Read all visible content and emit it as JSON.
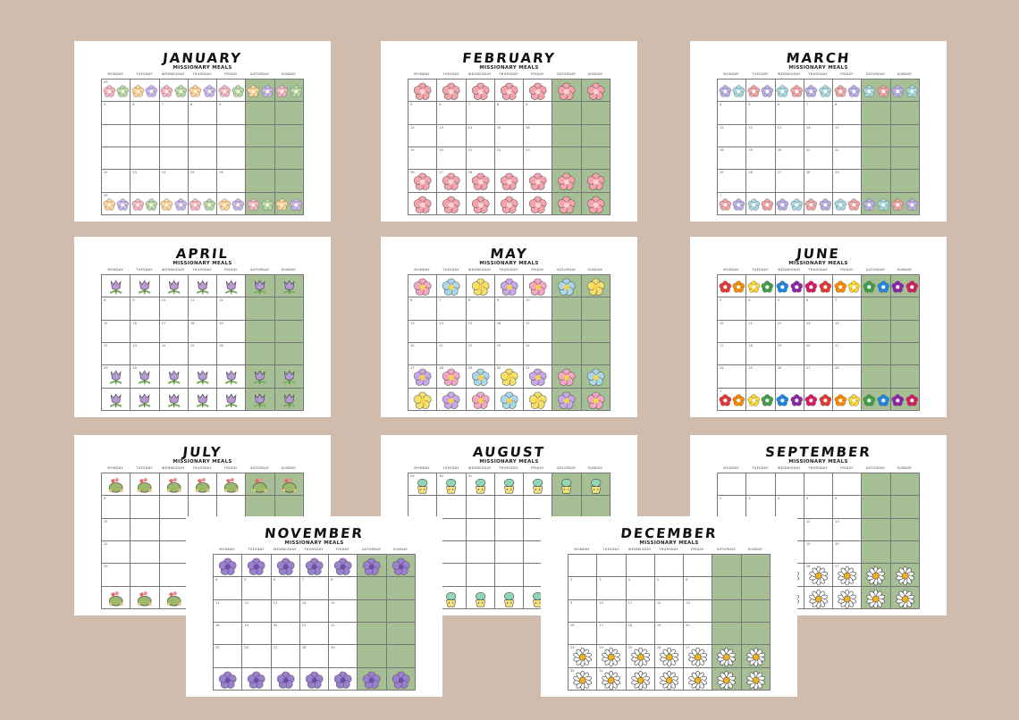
{
  "subtitle": "MISSIONARY MEALS",
  "weekdays": [
    "MONDAY",
    "TUESDAY",
    "WEDNESDAY",
    "THURSDAY",
    "FRIDAY",
    "SATURDAY",
    "SUNDAY"
  ],
  "colors": {
    "background": "#cfbcad",
    "weekend": "#a6bf95",
    "page": "#ffffff"
  },
  "months": [
    {
      "name": "JANUARY",
      "rows": 6,
      "icon": "pastel-flower-icon",
      "decorated_rows": [
        1,
        6
      ],
      "cells": [
        [
          "29",
          "",
          "",
          "",
          "",
          "",
          ""
        ],
        [
          "5",
          "6",
          "7",
          "8",
          "9",
          "",
          ""
        ],
        [
          "",
          "",
          "",
          "",
          "",
          "",
          ""
        ],
        [
          "",
          "",
          "",
          "",
          "",
          "",
          ""
        ],
        [
          "22",
          "23",
          "24",
          "25",
          "26",
          "",
          ""
        ],
        [
          "29",
          "",
          "",
          "",
          "",
          "",
          ""
        ]
      ]
    },
    {
      "name": "FEBRUARY",
      "rows": 6,
      "icon": "pink-flower-icon",
      "decorated_rows": [
        1,
        5,
        6
      ],
      "cells": [
        [
          "",
          "",
          "",
          "",
          "",
          "",
          ""
        ],
        [
          "5",
          "6",
          "7",
          "8",
          "9",
          "",
          ""
        ],
        [
          "12",
          "13",
          "14",
          "15",
          "16",
          "",
          ""
        ],
        [
          "19",
          "20",
          "21",
          "22",
          "23",
          "",
          ""
        ],
        [
          "26",
          "27",
          "28",
          "",
          "",
          "",
          ""
        ],
        [
          "",
          "",
          "",
          "",
          "",
          "",
          ""
        ]
      ]
    },
    {
      "name": "MARCH",
      "rows": 6,
      "icon": "snowflake-flower-icon",
      "decorated_rows": [
        1,
        6
      ],
      "cells": [
        [
          "",
          "",
          "",
          "",
          "",
          "",
          ""
        ],
        [
          "4",
          "5",
          "6",
          "7",
          "8",
          "",
          ""
        ],
        [
          "11",
          "12",
          "13",
          "14",
          "15",
          "",
          ""
        ],
        [
          "18",
          "19",
          "20",
          "21",
          "22",
          "",
          ""
        ],
        [
          "25",
          "26",
          "27",
          "28",
          "29",
          "",
          ""
        ],
        [
          "1",
          "",
          "",
          "",
          "",
          "",
          ""
        ]
      ]
    },
    {
      "name": "APRIL",
      "rows": 6,
      "icon": "tulip-icon",
      "decorated_rows": [
        1,
        5,
        6
      ],
      "cells": [
        [
          "",
          "",
          "",
          "",
          "",
          "",
          ""
        ],
        [
          "8",
          "9",
          "10",
          "11",
          "12",
          "",
          ""
        ],
        [
          "15",
          "16",
          "17",
          "18",
          "19",
          "",
          ""
        ],
        [
          "22",
          "23",
          "24",
          "25",
          "26",
          "",
          ""
        ],
        [
          "29",
          "30",
          "",
          "",
          "",
          "",
          ""
        ],
        [
          "",
          "",
          "",
          "",
          "",
          "",
          ""
        ]
      ]
    },
    {
      "name": "MAY",
      "rows": 6,
      "icon": "colorful-flower-icon",
      "decorated_rows": [
        1,
        5,
        6
      ],
      "cells": [
        [
          "",
          "",
          "",
          "",
          "",
          "",
          ""
        ],
        [
          "6",
          "7",
          "8",
          "9",
          "10",
          "",
          ""
        ],
        [
          "13",
          "14",
          "15",
          "16",
          "17",
          "",
          ""
        ],
        [
          "20",
          "21",
          "22",
          "23",
          "24",
          "",
          ""
        ],
        [
          "27",
          "28",
          "29",
          "30",
          "31",
          "",
          ""
        ],
        [
          "",
          "",
          "",
          "",
          "",
          "",
          ""
        ]
      ]
    },
    {
      "name": "JUNE",
      "rows": 6,
      "icon": "rainbow-flower-icon",
      "decorated_rows": [
        1,
        6
      ],
      "cells": [
        [
          "",
          "",
          "",
          "",
          "",
          "",
          ""
        ],
        [
          "3",
          "4",
          "5",
          "6",
          "7",
          "",
          ""
        ],
        [
          "10",
          "11",
          "12",
          "13",
          "14",
          "",
          ""
        ],
        [
          "17",
          "18",
          "19",
          "20",
          "21",
          "",
          ""
        ],
        [
          "24",
          "25",
          "26",
          "27",
          "28",
          "",
          ""
        ],
        [
          "1",
          "",
          "",
          "",
          "",
          "",
          ""
        ]
      ]
    },
    {
      "name": "JULY",
      "rows": 6,
      "icon": "turtle-icon",
      "decorated_rows": [
        1,
        6
      ],
      "cells": [
        [
          "",
          "",
          "",
          "",
          "",
          "",
          ""
        ],
        [
          "8",
          "",
          "",
          "",
          "",
          "",
          ""
        ],
        [
          "15",
          "",
          "",
          "",
          "",
          "",
          ""
        ],
        [
          "22",
          "",
          "",
          "",
          "",
          "",
          ""
        ],
        [
          "29",
          "",
          "",
          "",
          "",
          "",
          ""
        ],
        [
          "",
          "",
          "",
          "",
          "",
          "",
          ""
        ]
      ]
    },
    {
      "name": "AUGUST",
      "rows": 6,
      "icon": "cactus-icon",
      "decorated_rows": [
        1,
        6
      ],
      "cells": [
        [
          "29",
          "30",
          "31",
          "",
          "",
          "",
          ""
        ],
        [
          "",
          "",
          "",
          "",
          "",
          "",
          ""
        ],
        [
          "",
          "",
          "",
          "",
          "",
          "",
          ""
        ],
        [
          "",
          "",
          "",
          "",
          "",
          "",
          ""
        ],
        [
          "",
          "",
          "",
          "",
          "",
          "",
          ""
        ],
        [
          "",
          "",
          "",
          "",
          "",
          "",
          ""
        ]
      ]
    },
    {
      "name": "SEPTEMBER",
      "rows": 6,
      "icon": "daisy-icon",
      "decorated_rows": [
        5,
        6
      ],
      "cells": [
        [
          "",
          "",
          "",
          "",
          "",
          "",
          ""
        ],
        [
          "2",
          "3",
          "4",
          "5",
          "6",
          "",
          ""
        ],
        [
          "9",
          "10",
          "11",
          "12",
          "13",
          "",
          ""
        ],
        [
          "16",
          "17",
          "18",
          "19",
          "20",
          "",
          ""
        ],
        [
          "23",
          "24",
          "25",
          "26",
          "27",
          "",
          ""
        ],
        [
          "30",
          "",
          "",
          "",
          "",
          "",
          ""
        ]
      ]
    },
    {
      "name": "NOVEMBER",
      "rows": 6,
      "icon": "purple-flower-icon",
      "decorated_rows": [
        1,
        6
      ],
      "cells": [
        [
          "",
          "",
          "",
          "",
          "",
          "",
          ""
        ],
        [
          "4",
          "5",
          "6",
          "7",
          "8",
          "",
          ""
        ],
        [
          "11",
          "12",
          "13",
          "14",
          "15",
          "",
          ""
        ],
        [
          "18",
          "19",
          "20",
          "21",
          "22",
          "",
          ""
        ],
        [
          "25",
          "26",
          "27",
          "28",
          "29",
          "",
          ""
        ],
        [
          "",
          "",
          "",
          "",
          "",
          "",
          ""
        ]
      ]
    },
    {
      "name": "DECEMBER",
      "rows": 6,
      "icon": "daisy-icon",
      "decorated_rows": [
        5,
        6
      ],
      "cells": [
        [
          "",
          "",
          "",
          "",
          "",
          "",
          ""
        ],
        [
          "2",
          "3",
          "4",
          "5",
          "6",
          "",
          ""
        ],
        [
          "9",
          "10",
          "11",
          "12",
          "13",
          "",
          ""
        ],
        [
          "16",
          "17",
          "18",
          "19",
          "20",
          "",
          ""
        ],
        [
          "23",
          "24",
          "25",
          "26",
          "27",
          "",
          ""
        ],
        [
          "30",
          "31",
          "",
          "",
          "",
          "",
          ""
        ]
      ]
    }
  ]
}
